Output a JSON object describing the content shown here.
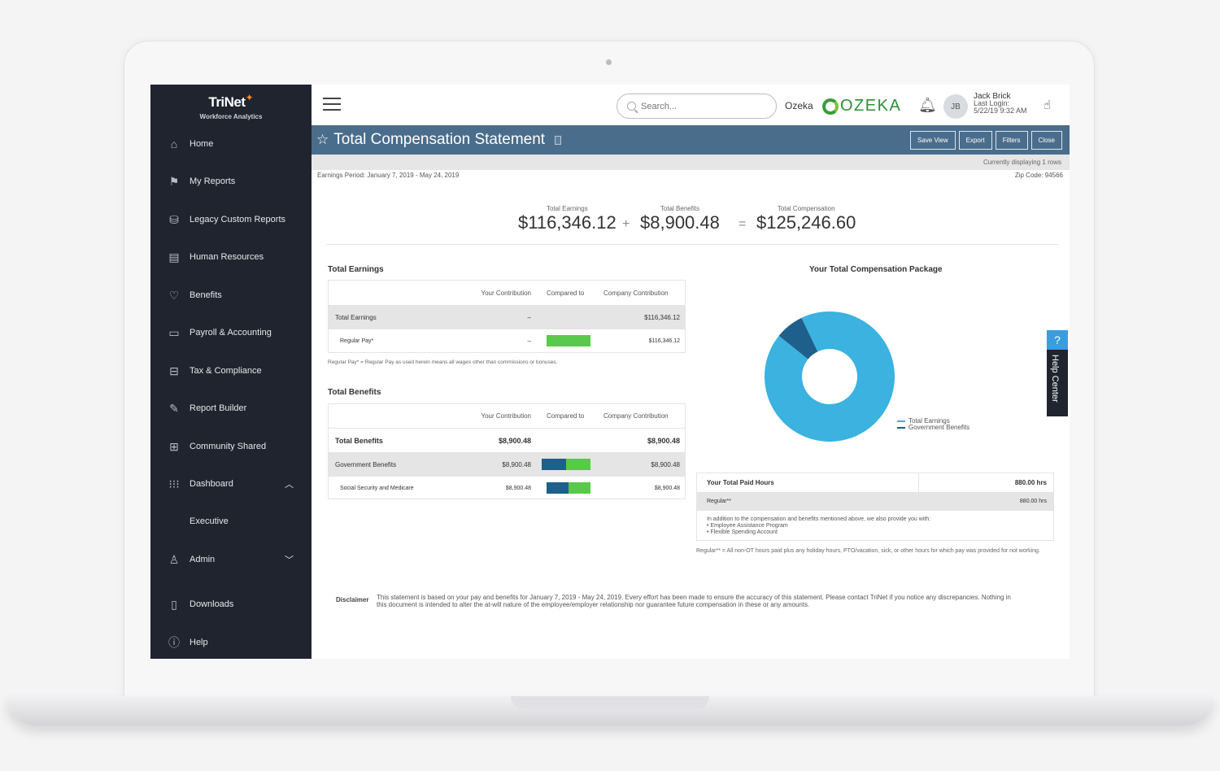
{
  "sidebar": {
    "logo_name": "TriNet",
    "logo_sub": "Workforce Analytics",
    "items": [
      {
        "label": "Home",
        "icon": "home-icon"
      },
      {
        "label": "My Reports",
        "icon": "flag-icon"
      },
      {
        "label": "Legacy Custom Reports",
        "icon": "legacy-reports-icon"
      },
      {
        "label": "Human Resources",
        "icon": "human-resources-icon"
      },
      {
        "label": "Benefits",
        "icon": "heart-icon"
      },
      {
        "label": "Payroll & Accounting",
        "icon": "wallet-icon"
      },
      {
        "label": "Tax & Compliance",
        "icon": "briefcase-icon"
      },
      {
        "label": "Report Builder",
        "icon": "pencil-icon"
      },
      {
        "label": "Community Shared",
        "icon": "shared-icon"
      },
      {
        "label": "Dashboard",
        "icon": "grid-icon"
      },
      {
        "label": "Executive",
        "icon": ""
      },
      {
        "label": "Admin",
        "icon": "admin-icon"
      },
      {
        "label": "Downloads",
        "icon": "download-icon"
      },
      {
        "label": "Help",
        "icon": "info-icon"
      }
    ]
  },
  "topbar": {
    "search_placeholder": "Search...",
    "company_label": "Ozeka",
    "company_logo_text": "OZEKA",
    "avatar_initials": "JB",
    "user_name": "Jack Brick",
    "last_login_label": "Last Login:",
    "last_login_time": "5/22/19 9:32 AM"
  },
  "titlebar": {
    "title": "Total Compensation Statement",
    "buttons": [
      "Save View",
      "Export",
      "Filters",
      "Close"
    ]
  },
  "subbar": {
    "currently_displaying": "Currently displaying 1 rows"
  },
  "meta": {
    "earnings_period": "Earnings Period: January 7, 2019 - May 24, 2019",
    "zip_code": "Zip Code: 94566"
  },
  "summary": {
    "earnings_label": "Total Earnings",
    "earnings_value": "$116,346.12",
    "plus": "+",
    "benefits_label": "Total Benefits",
    "benefits_value": "$8,900.48",
    "equals": "=",
    "compensation_label": "Total Compensation",
    "compensation_value": "$125,246.60"
  },
  "earnings_table": {
    "title": "Total Earnings",
    "headers": [
      "Your Contribution",
      "Compared to",
      "Company Contribution"
    ],
    "rows": [
      {
        "label": "Total Earnings",
        "contribution": "–",
        "company": "$116,346.12"
      },
      {
        "label": "Regular Pay*",
        "contribution": "–",
        "company": "$116,346.12",
        "compared_company_fraction": 1.0
      }
    ],
    "footnote": "Regular Pay* = Regular Pay as used herein means all wages other than commissions or bonuses."
  },
  "benefits_table": {
    "title": "Total Benefits",
    "headers": [
      "Your Contribution",
      "Compared to",
      "Company Contribution"
    ],
    "rows": [
      {
        "label": "Total Benefits",
        "contribution": "$8,900.48",
        "company": "$8,900.48"
      },
      {
        "label": "Government Benefits",
        "contribution": "$8,900.48",
        "company": "$8,900.48",
        "compared_employee_fraction": 0.5
      },
      {
        "label": "Social Security and Medicare",
        "contribution": "$8,900.48",
        "company": "$8,900.48",
        "compared_employee_fraction": 0.5
      }
    ]
  },
  "chart_data": {
    "type": "pie",
    "title": "Your Total Compensation Package",
    "style": "donut",
    "categories": [
      "Total Earnings",
      "Government Benefits"
    ],
    "values": [
      116346.12,
      8900.48
    ],
    "colors": [
      "#3bb2e0",
      "#1f5f8b"
    ],
    "legend_position": "bottom-right"
  },
  "paid_hours": {
    "title": "Your Total Paid Hours",
    "total": "880.00 hrs",
    "regular_label": "Regular**",
    "regular_value": "880.00 hrs",
    "note_intro": "In addition to the compensation and benefits mentioned above, we also provide you with:",
    "bullets": [
      "Employee Assistance Program",
      "Flexible Spending Account"
    ],
    "footnote": "Regular** = All non-OT hours paid plus any holiday hours, PTO/vacation, sick, or other hours for which pay was provided for not working."
  },
  "disclaimer": {
    "label": "Disclaimer",
    "text": "This statement is based on your pay and benefits for January 7, 2019 - May 24, 2019. Every effort has been made to ensure the accuracy of this statement. Please contact TriNet if you notice any discrepancies. Nothing in this document is intended to alter the at-will nature of the employee/employer relationship nor guarantee future compensation in these or any amounts."
  },
  "help": {
    "label": "Help Center",
    "icon_text": "?"
  },
  "colors": {
    "sidebar_bg": "#20242f",
    "title_bar": "#4a6d8c",
    "bar_green": "#5ac84a",
    "bar_navy": "#1f5f8b",
    "donut_light": "#3bb2e0",
    "donut_dark": "#1f5f8b"
  }
}
